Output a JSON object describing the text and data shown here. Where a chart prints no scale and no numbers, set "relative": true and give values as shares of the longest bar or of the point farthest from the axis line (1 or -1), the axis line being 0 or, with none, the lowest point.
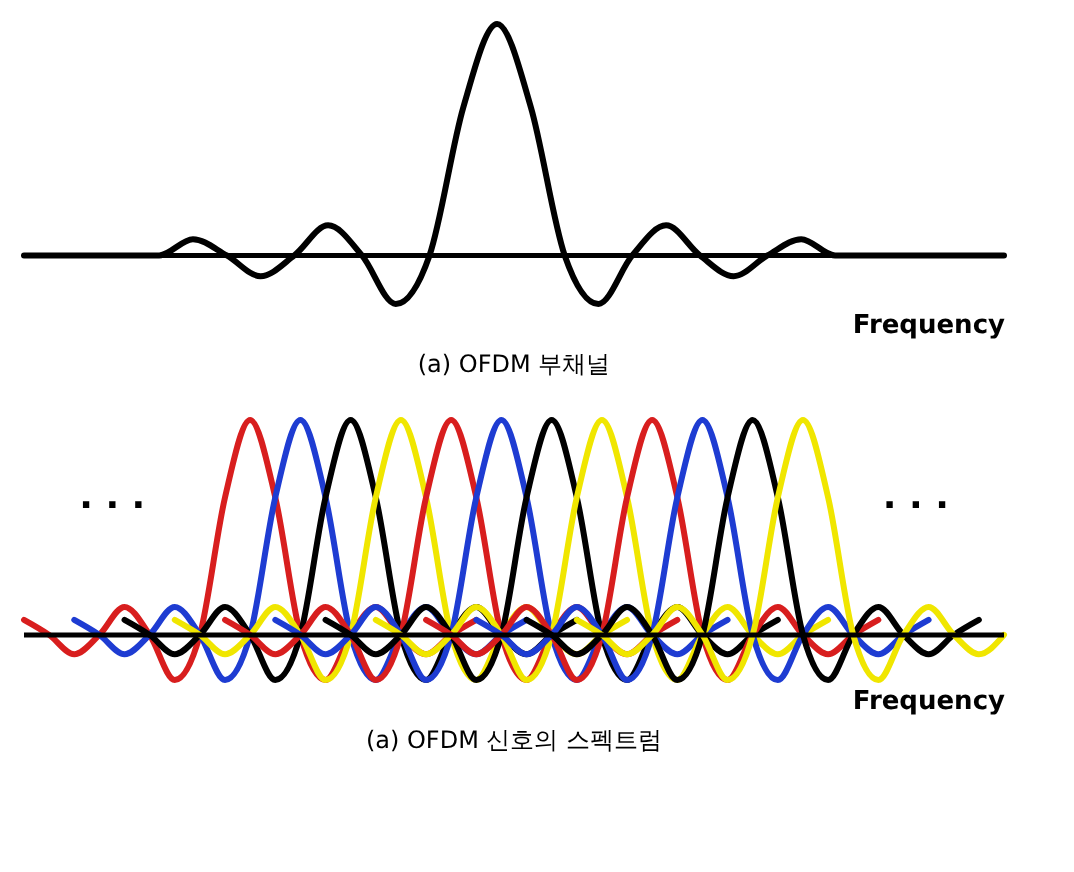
{
  "chart_data": [
    {
      "type": "line",
      "relative": true,
      "tick_labels": false,
      "title": "(a) OFDM 부채널",
      "xlabel": "Frequency",
      "categories": [
        null,
        null,
        null,
        null,
        null,
        null,
        null,
        null,
        null,
        null,
        null,
        null,
        null,
        null,
        null,
        null,
        null,
        null,
        null,
        null,
        null,
        null,
        null,
        null,
        null,
        null,
        null,
        null,
        null,
        null
      ],
      "series": [
        {
          "color": "#000000",
          "values": [
            0,
            0,
            0,
            0,
            0,
            0.07,
            0,
            -0.09,
            0,
            0.13,
            0,
            -0.21,
            0,
            0.64,
            1,
            0.64,
            0,
            -0.21,
            0,
            0.13,
            0,
            -0.09,
            0,
            0.07,
            0,
            0,
            0,
            0,
            0,
            0
          ]
        }
      ]
    },
    {
      "type": "line",
      "relative": true,
      "tick_labels": false,
      "title": "(a) OFDM 신호의 스펙트럼",
      "xlabel": "Frequency",
      "annotations": [
        ". . .",
        ". . ."
      ],
      "categories": [
        null,
        null,
        null,
        null,
        null,
        null,
        null,
        null,
        null,
        null,
        null,
        null,
        null,
        null,
        null,
        null,
        null,
        null,
        null,
        null,
        null,
        null,
        null,
        null,
        null,
        null,
        null,
        null,
        null,
        null,
        null,
        null,
        null,
        null,
        null,
        null,
        null,
        null,
        null,
        null
      ],
      "series": [
        {
          "color": "#d81e1e",
          "values": [
            0.07,
            0,
            -0.09,
            0,
            0.13,
            0,
            -0.21,
            0,
            0.64,
            1,
            0.64,
            0,
            -0.21,
            0,
            0.13,
            0,
            -0.09,
            0,
            0.07,
            null,
            null,
            null,
            null,
            null,
            null,
            null,
            null,
            null,
            null,
            null,
            null,
            null,
            null,
            null,
            null,
            null,
            null,
            null,
            null,
            null
          ]
        },
        {
          "color": "#1e3cd2",
          "values": [
            null,
            null,
            0.07,
            0,
            -0.09,
            0,
            0.13,
            0,
            -0.21,
            0,
            0.64,
            1,
            0.64,
            0,
            -0.21,
            0,
            0.13,
            0,
            -0.09,
            0,
            0.07,
            null,
            null,
            null,
            null,
            null,
            null,
            null,
            null,
            null,
            null,
            null,
            null,
            null,
            null,
            null,
            null,
            null,
            null,
            null
          ]
        },
        {
          "color": "#000000",
          "values": [
            null,
            null,
            null,
            null,
            0.07,
            0,
            -0.09,
            0,
            0.13,
            0,
            -0.21,
            0,
            0.64,
            1,
            0.64,
            0,
            -0.21,
            0,
            0.13,
            0,
            -0.09,
            0,
            0.07,
            null,
            null,
            null,
            null,
            null,
            null,
            null,
            null,
            null,
            null,
            null,
            null,
            null,
            null,
            null,
            null,
            null
          ]
        },
        {
          "color": "#f0e600",
          "values": [
            null,
            null,
            null,
            null,
            null,
            null,
            0.07,
            0,
            -0.09,
            0,
            0.13,
            0,
            -0.21,
            0,
            0.64,
            1,
            0.64,
            0,
            -0.21,
            0,
            0.13,
            0,
            -0.09,
            0,
            0.07,
            null,
            null,
            null,
            null,
            null,
            null,
            null,
            null,
            null,
            null,
            null,
            null,
            null,
            null,
            null
          ]
        },
        {
          "color": "#d81e1e",
          "values": [
            null,
            null,
            null,
            null,
            null,
            null,
            null,
            null,
            0.07,
            0,
            -0.09,
            0,
            0.13,
            0,
            -0.21,
            0,
            0.64,
            1,
            0.64,
            0,
            -0.21,
            0,
            0.13,
            0,
            -0.09,
            0,
            0.07,
            null,
            null,
            null,
            null,
            null,
            null,
            null,
            null,
            null,
            null,
            null,
            null,
            null
          ]
        },
        {
          "color": "#1e3cd2",
          "values": [
            null,
            null,
            null,
            null,
            null,
            null,
            null,
            null,
            null,
            null,
            0.07,
            0,
            -0.09,
            0,
            0.13,
            0,
            -0.21,
            0,
            0.64,
            1,
            0.64,
            0,
            -0.21,
            0,
            0.13,
            0,
            -0.09,
            0,
            0.07,
            null,
            null,
            null,
            null,
            null,
            null,
            null,
            null,
            null,
            null,
            null
          ]
        },
        {
          "color": "#000000",
          "values": [
            null,
            null,
            null,
            null,
            null,
            null,
            null,
            null,
            null,
            null,
            null,
            null,
            0.07,
            0,
            -0.09,
            0,
            0.13,
            0,
            -0.21,
            0,
            0.64,
            1,
            0.64,
            0,
            -0.21,
            0,
            0.13,
            0,
            -0.09,
            0,
            0.07,
            null,
            null,
            null,
            null,
            null,
            null,
            null,
            null,
            null
          ]
        },
        {
          "color": "#f0e600",
          "values": [
            null,
            null,
            null,
            null,
            null,
            null,
            null,
            null,
            null,
            null,
            null,
            null,
            null,
            null,
            0.07,
            0,
            -0.09,
            0,
            0.13,
            0,
            -0.21,
            0,
            0.64,
            1,
            0.64,
            0,
            -0.21,
            0,
            0.13,
            0,
            -0.09,
            0,
            0.07,
            null,
            null,
            null,
            null,
            null,
            null,
            null
          ]
        },
        {
          "color": "#d81e1e",
          "values": [
            null,
            null,
            null,
            null,
            null,
            null,
            null,
            null,
            null,
            null,
            null,
            null,
            null,
            null,
            null,
            null,
            0.07,
            0,
            -0.09,
            0,
            0.13,
            0,
            -0.21,
            0,
            0.64,
            1,
            0.64,
            0,
            -0.21,
            0,
            0.13,
            0,
            -0.09,
            0,
            0.07,
            null,
            null,
            null,
            null,
            null
          ]
        },
        {
          "color": "#1e3cd2",
          "values": [
            null,
            null,
            null,
            null,
            null,
            null,
            null,
            null,
            null,
            null,
            null,
            null,
            null,
            null,
            null,
            null,
            null,
            null,
            0.07,
            0,
            -0.09,
            0,
            0.13,
            0,
            -0.21,
            0,
            0.64,
            1,
            0.64,
            0,
            -0.21,
            0,
            0.13,
            0,
            -0.09,
            0,
            0.07,
            null,
            null,
            null
          ]
        },
        {
          "color": "#000000",
          "values": [
            null,
            null,
            null,
            null,
            null,
            null,
            null,
            null,
            null,
            null,
            null,
            null,
            null,
            null,
            null,
            null,
            null,
            null,
            null,
            null,
            0.07,
            0,
            -0.09,
            0,
            0.13,
            0,
            -0.21,
            0,
            0.64,
            1,
            0.64,
            0,
            -0.21,
            0,
            0.13,
            0,
            -0.09,
            0,
            0.07,
            null
          ]
        },
        {
          "color": "#f0e600",
          "values": [
            null,
            null,
            null,
            null,
            null,
            null,
            null,
            null,
            null,
            null,
            null,
            null,
            null,
            null,
            null,
            null,
            null,
            null,
            null,
            null,
            null,
            null,
            0.07,
            0,
            -0.09,
            0,
            0.13,
            0,
            -0.21,
            0,
            0.64,
            1,
            0.64,
            0,
            -0.21,
            0,
            0.13,
            0,
            -0.09,
            0
          ]
        }
      ]
    }
  ]
}
